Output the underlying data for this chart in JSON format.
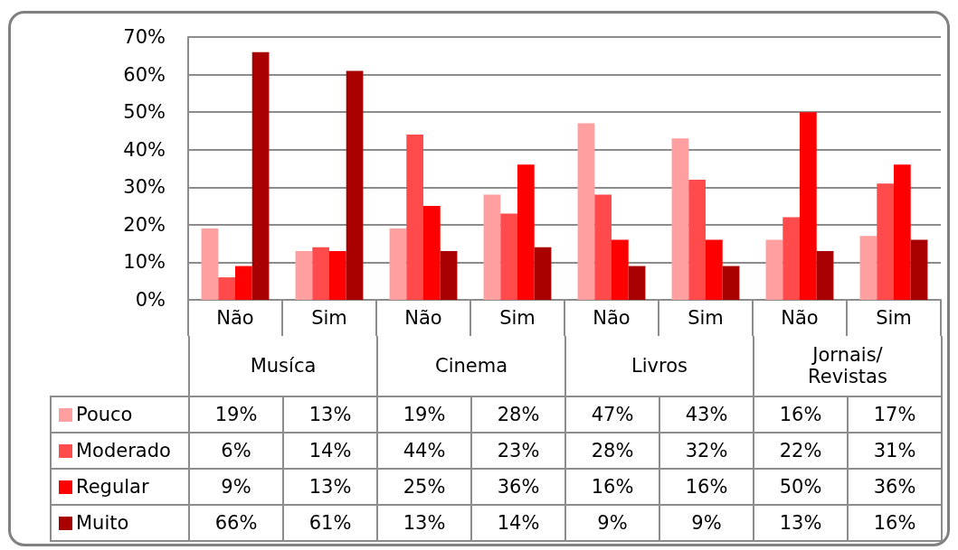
{
  "chart_data": {
    "type": "bar",
    "categories": [
      "Não",
      "Sim",
      "Não",
      "Sim",
      "Não",
      "Sim",
      "Não",
      "Sim"
    ],
    "annotations": [
      "Musíca",
      "Cinema",
      "Livros",
      "Jornais/ Revistas"
    ],
    "series": [
      {
        "name": "Pouco",
        "color": "#ff9f9f",
        "values": [
          19,
          13,
          19,
          28,
          47,
          43,
          16,
          17
        ],
        "value_labels": [
          "19%",
          "13%",
          "19%",
          "28%",
          "47%",
          "43%",
          "16%",
          "17%"
        ]
      },
      {
        "name": "Moderado",
        "color": "#ff4b4b",
        "values": [
          6,
          14,
          44,
          23,
          28,
          32,
          22,
          31
        ],
        "value_labels": [
          "6%",
          "14%",
          "44%",
          "23%",
          "28%",
          "32%",
          "22%",
          "31%"
        ]
      },
      {
        "name": "Regular",
        "color": "#ff0000",
        "values": [
          9,
          13,
          25,
          36,
          16,
          16,
          50,
          36
        ],
        "value_labels": [
          "9%",
          "13%",
          "25%",
          "36%",
          "16%",
          "16%",
          "50%",
          "36%"
        ]
      },
      {
        "name": "Muito",
        "color": "#a80000",
        "values": [
          66,
          61,
          13,
          14,
          9,
          9,
          13,
          16
        ],
        "value_labels": [
          "66%",
          "61%",
          "13%",
          "14%",
          "9%",
          "9%",
          "13%",
          "16%"
        ]
      }
    ],
    "ylim": [
      0,
      70
    ],
    "yticks": [
      {
        "value": 0,
        "label": "0%"
      },
      {
        "value": 10,
        "label": "10%"
      },
      {
        "value": 20,
        "label": "20%"
      },
      {
        "value": 30,
        "label": "30%"
      },
      {
        "value": 40,
        "label": "40%"
      },
      {
        "value": 50,
        "label": "50%"
      },
      {
        "value": 60,
        "label": "60%"
      },
      {
        "value": 70,
        "label": "70%"
      }
    ],
    "grid": "y",
    "legend": "bottom"
  }
}
